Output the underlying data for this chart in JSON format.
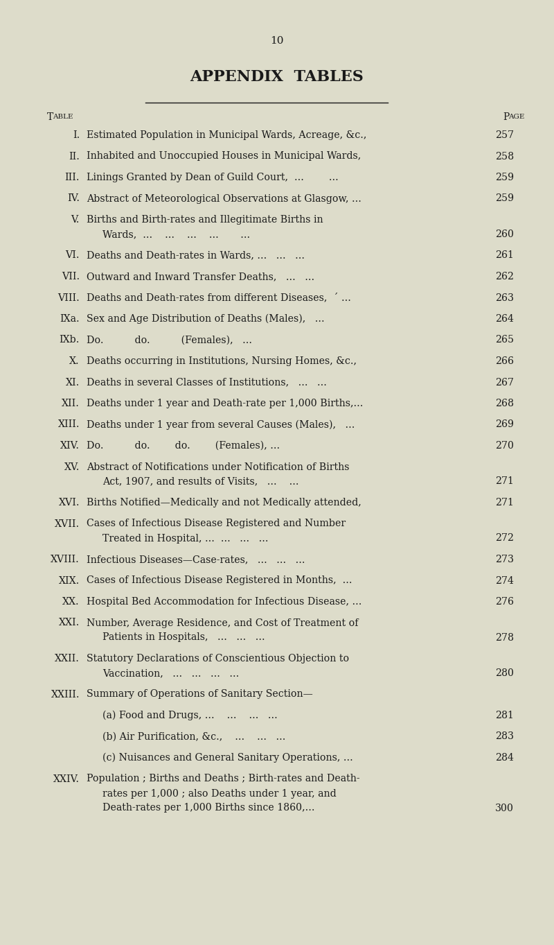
{
  "page_number": "10",
  "title": "APPENDIX  TABLES",
  "bg_color": "#dddcca",
  "text_color": "#1a1a1a",
  "header_left": "Table",
  "header_right": "Page",
  "entries": [
    {
      "num": "I.",
      "lines": [
        "Estimated Population in Municipal Wards, Acreage, &c.,"
      ],
      "page": "257"
    },
    {
      "num": "II.",
      "lines": [
        "Inhabited and Unoccupied Houses in Municipal Wards,"
      ],
      "page": "258"
    },
    {
      "num": "III.",
      "lines": [
        "Linings Granted by Dean of Guild Court,  ...        ..."
      ],
      "page": "259"
    },
    {
      "num": "IV.",
      "lines": [
        "Abstract of Meteorological Observations at Glasgow, ..."
      ],
      "page": "259"
    },
    {
      "num": "V.",
      "lines": [
        "Births and Birth-rates and Illegitimate Births in",
        "Wards,  ...    ...    ...    ...       ..."
      ],
      "page": "260"
    },
    {
      "num": "VI.",
      "lines": [
        "Deaths and Death-rates in Wards, ...   ...   ..."
      ],
      "page": "261"
    },
    {
      "num": "VII.",
      "lines": [
        "Outward and Inward Transfer Deaths,   ...   ..."
      ],
      "page": "262"
    },
    {
      "num": "VIII.",
      "lines": [
        "Deaths and Death-rates from different Diseases,  ´ ..."
      ],
      "page": "263"
    },
    {
      "num": "IXa.",
      "lines": [
        "Sex and Age Distribution of Deaths (Males),   ..."
      ],
      "page": "264"
    },
    {
      "num": "IXb.",
      "lines": [
        "Do.          do.          (Females),   ..."
      ],
      "page": "265"
    },
    {
      "num": "X.",
      "lines": [
        "Deaths occurring in Institutions, Nursing Homes, &c.,"
      ],
      "page": "266"
    },
    {
      "num": "XI.",
      "lines": [
        "Deaths in several Classes of Institutions,   ...   ..."
      ],
      "page": "267"
    },
    {
      "num": "XII.",
      "lines": [
        "Deaths under 1 year and Death-rate per 1,000 Births,..."
      ],
      "page": "268"
    },
    {
      "num": "XIII.",
      "lines": [
        "Deaths under 1 year from several Causes (Males),   ..."
      ],
      "page": "269"
    },
    {
      "num": "XIV.",
      "lines": [
        "Do.          do.        do.        (Females), ..."
      ],
      "page": "270"
    },
    {
      "num": "XV.",
      "lines": [
        "Abstract of Notifications under Notification of Births",
        "Act, 1907, and results of Visits,   ...    ..."
      ],
      "page": "271"
    },
    {
      "num": "XVI.",
      "lines": [
        "Births Notified—Medically and not Medically attended,"
      ],
      "page": "271"
    },
    {
      "num": "XVII.",
      "lines": [
        "Cases of Infectious Disease Registered and Number",
        "Treated in Hospital, ...  ...   ...   ..."
      ],
      "page": "272"
    },
    {
      "num": "XVIII.",
      "lines": [
        "Infectious Diseases—Case-rates,   ...   ...   ..."
      ],
      "page": "273"
    },
    {
      "num": "XIX.",
      "lines": [
        "Cases of Infectious Disease Registered in Months,  ..."
      ],
      "page": "274"
    },
    {
      "num": "XX.",
      "lines": [
        "Hospital Bed Accommodation for Infectious Disease, ..."
      ],
      "page": "276"
    },
    {
      "num": "XXI.",
      "lines": [
        "Number, Average Residence, and Cost of Treatment of",
        "Patients in Hospitals,   ...   ...   ..."
      ],
      "page": "278"
    },
    {
      "num": "XXII.",
      "lines": [
        "Statutory Declarations of Conscientious Objection to",
        "Vaccination,   ...   ...   ...   ..."
      ],
      "page": "280"
    },
    {
      "num": "XXIII.",
      "lines": [
        "Summary of Operations of Sanitary Section—"
      ],
      "page": ""
    },
    {
      "num": "",
      "lines": [
        "(a) Food and Drugs, ...    ...    ...   ..."
      ],
      "page": "281",
      "sub": true
    },
    {
      "num": "",
      "lines": [
        "(b) Air Purification, &c.,    ...    ...   ..."
      ],
      "page": "283",
      "sub": true
    },
    {
      "num": "",
      "lines": [
        "(c) Nuisances and General Sanitary Operations, ..."
      ],
      "page": "284",
      "sub": true
    },
    {
      "num": "XXIV.",
      "lines": [
        "Population ; Births and Deaths ; Birth-rates and Death-",
        "rates per 1,000 ; also Deaths under 1 year, and",
        "Death-rates per 1,000 Births since 1860,..."
      ],
      "page": "300"
    }
  ]
}
